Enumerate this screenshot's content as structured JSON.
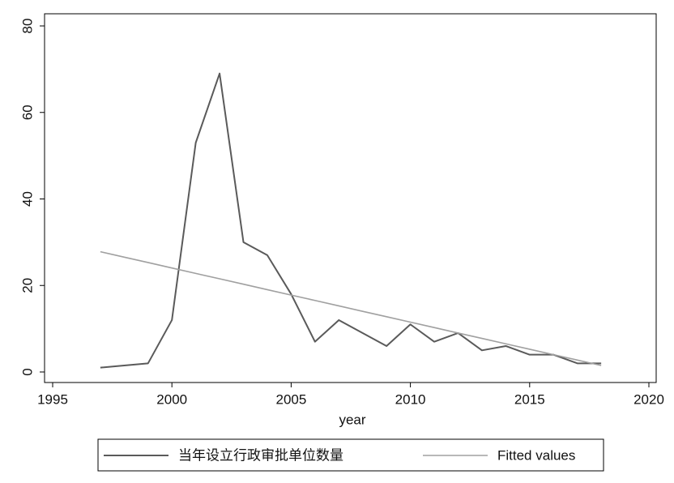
{
  "chart_data": {
    "type": "line",
    "x_label": "year",
    "x": [
      1997,
      1998,
      1999,
      2000,
      2001,
      2002,
      2003,
      2004,
      2005,
      2006,
      2007,
      2008,
      2009,
      2010,
      2011,
      2012,
      2013,
      2014,
      2015,
      2016,
      2017,
      2018
    ],
    "series": [
      {
        "name": "当年设立行政审批单位数量",
        "color": "#5a5a5a",
        "width": 2,
        "values": [
          1,
          1.5,
          2,
          12,
          53,
          69,
          30,
          27,
          18,
          7,
          12,
          9,
          6,
          11,
          7,
          9,
          5,
          6,
          4,
          4,
          2,
          2
        ]
      },
      {
        "name": "Fitted values",
        "color": "#a0a0a0",
        "width": 1.6,
        "values": [
          27.8,
          26.55,
          25.3,
          24.04,
          22.79,
          21.54,
          20.29,
          19.03,
          17.78,
          16.53,
          15.28,
          14.02,
          12.77,
          11.52,
          10.27,
          9.01,
          7.76,
          6.51,
          5.26,
          4.0,
          2.75,
          1.5
        ]
      }
    ],
    "xlim": [
      1995,
      2020
    ],
    "xticks": [
      1995,
      2000,
      2005,
      2010,
      2015,
      2020
    ],
    "ylim": [
      0,
      80
    ],
    "yticks": [
      0,
      20,
      40,
      60,
      80
    ],
    "grid": false,
    "legend": "bottom"
  }
}
